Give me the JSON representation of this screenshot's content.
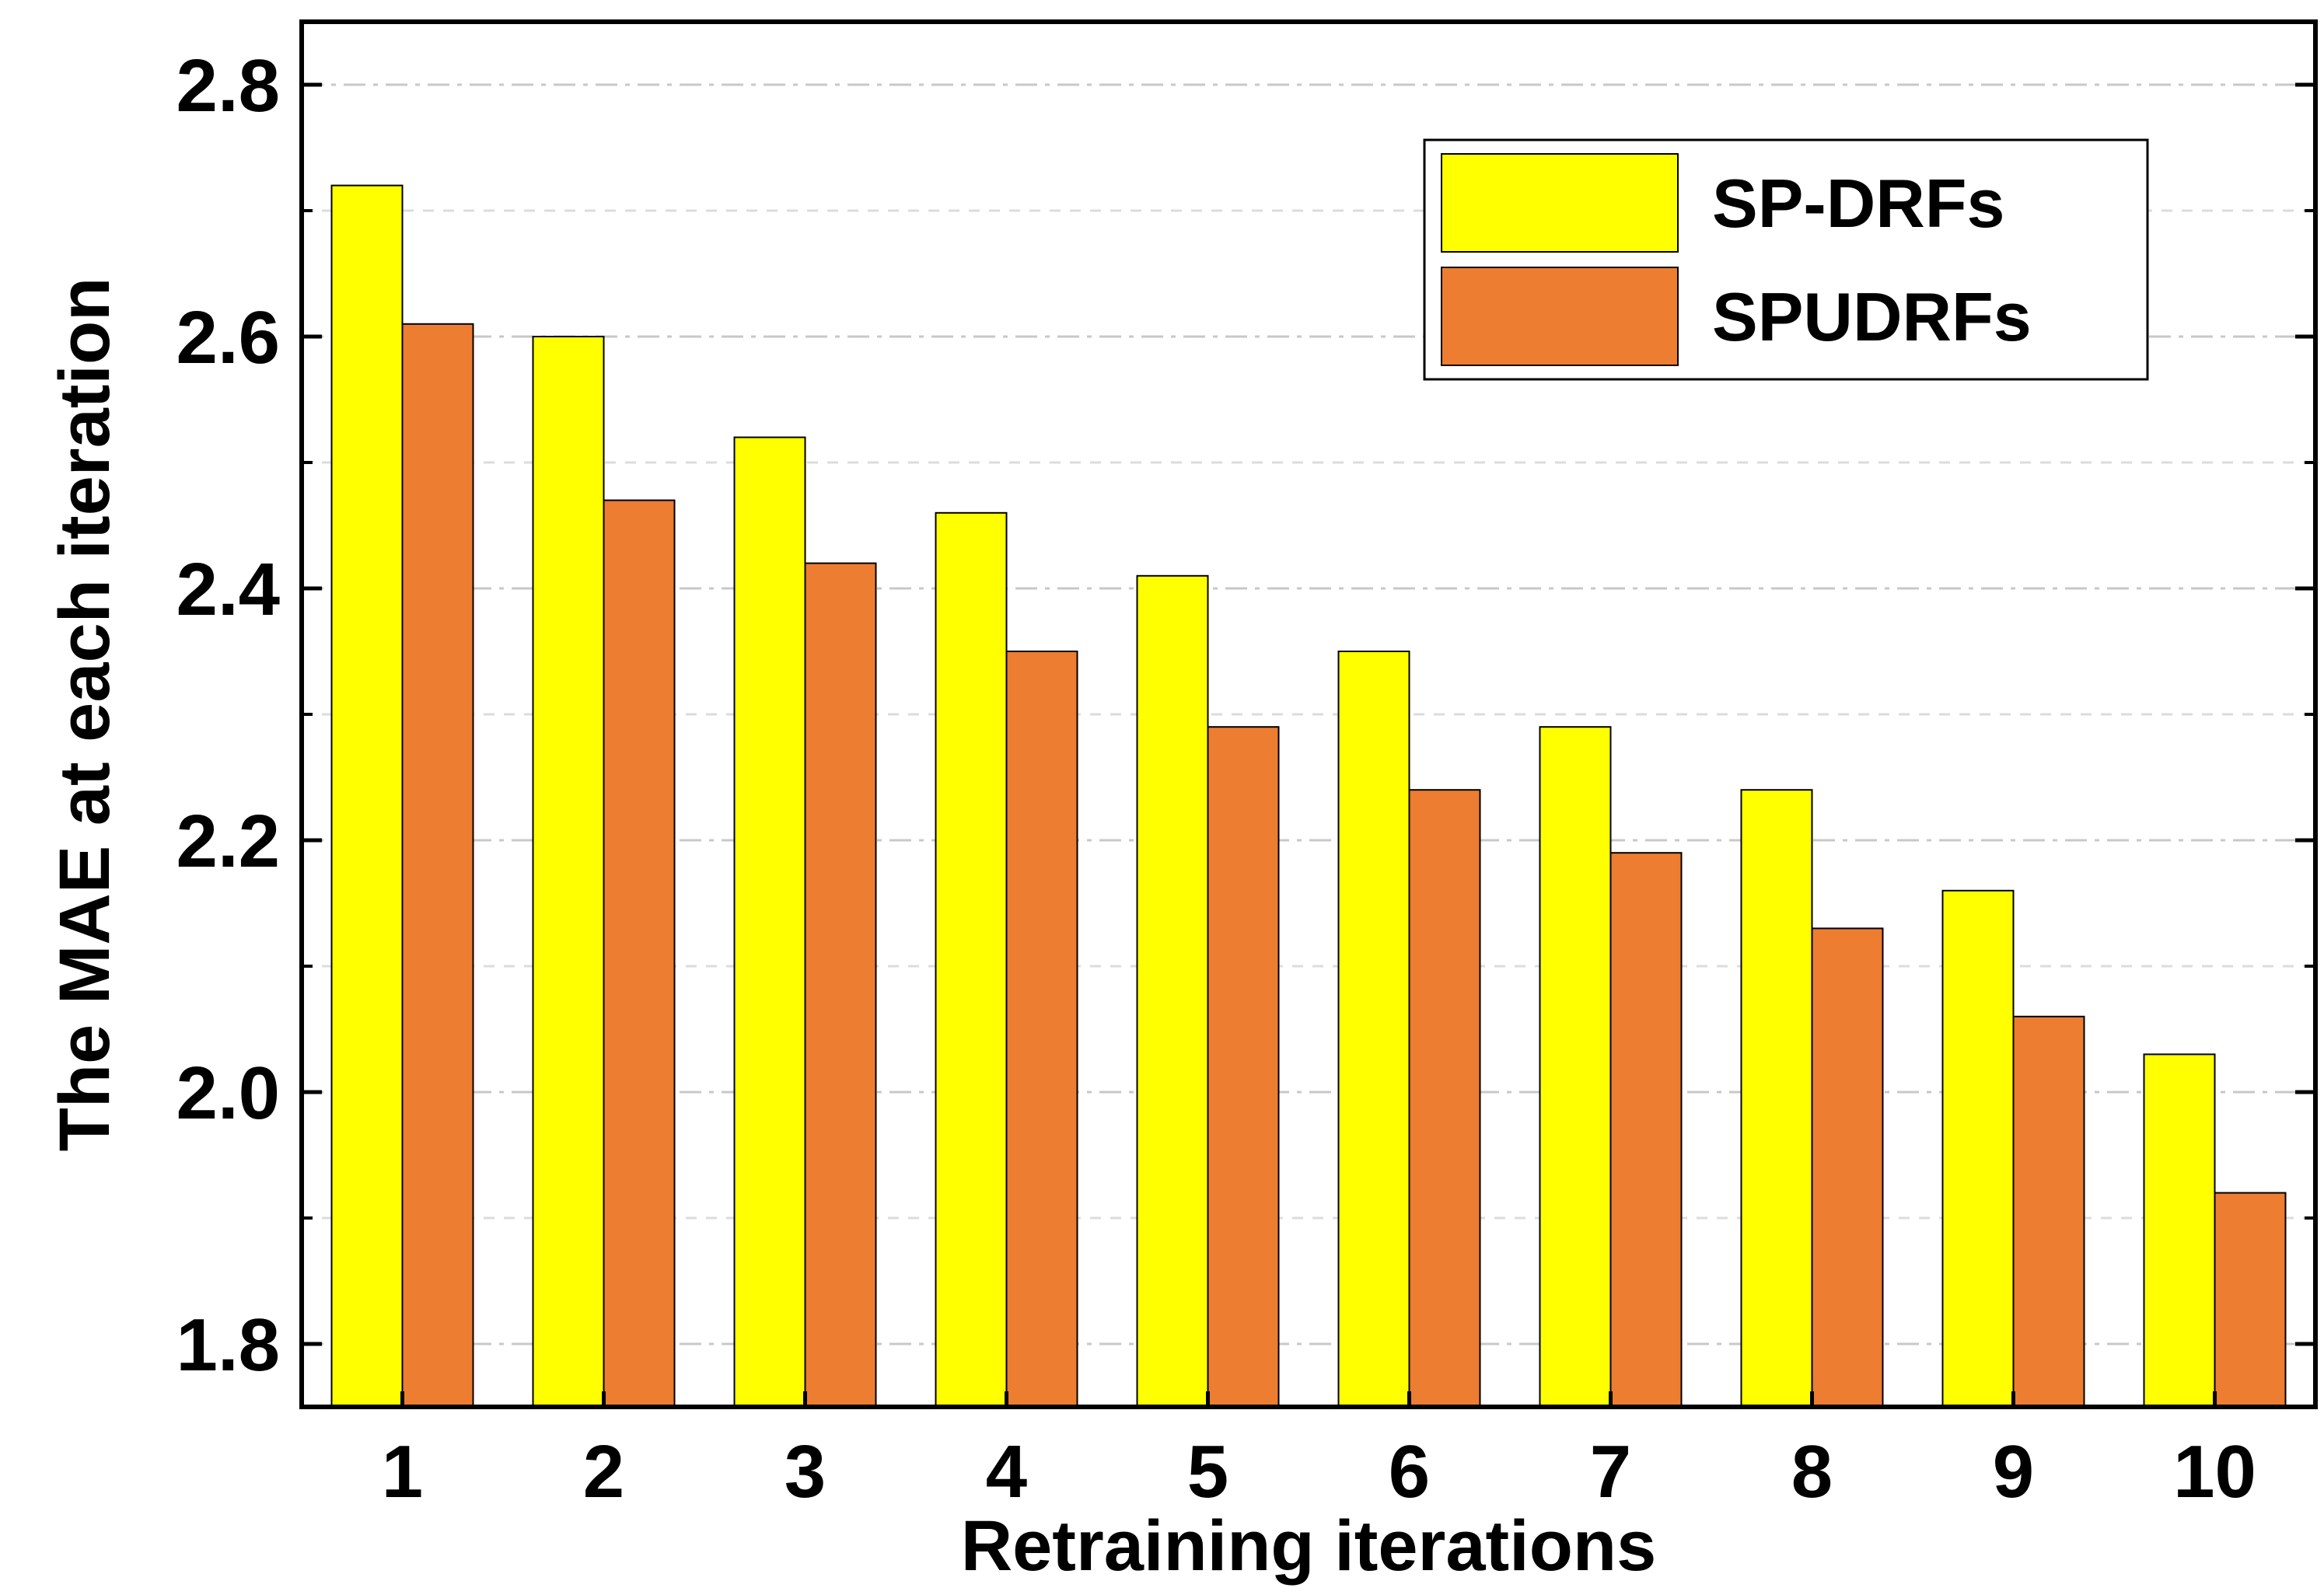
{
  "chart_data": {
    "type": "bar",
    "title": "",
    "xlabel": "Retraining iterations",
    "ylabel": "The MAE at each iteration",
    "categories": [
      "1",
      "2",
      "3",
      "4",
      "5",
      "6",
      "7",
      "8",
      "9",
      "10"
    ],
    "series": [
      {
        "name": "SP-DRFs",
        "color": "#ffff00",
        "values": [
          2.72,
          2.6,
          2.52,
          2.46,
          2.41,
          2.35,
          2.29,
          2.24,
          2.16,
          2.03
        ]
      },
      {
        "name": "SPUDRFs",
        "color": "#ed7d31",
        "values": [
          2.61,
          2.47,
          2.42,
          2.35,
          2.29,
          2.24,
          2.19,
          2.13,
          2.06,
          1.92
        ]
      }
    ],
    "ylim": [
      1.75,
      2.85
    ],
    "yticks": [
      "1.8",
      "2.0",
      "2.2",
      "2.4",
      "2.6",
      "2.8"
    ],
    "grid": true,
    "legend_position": "top-right"
  }
}
